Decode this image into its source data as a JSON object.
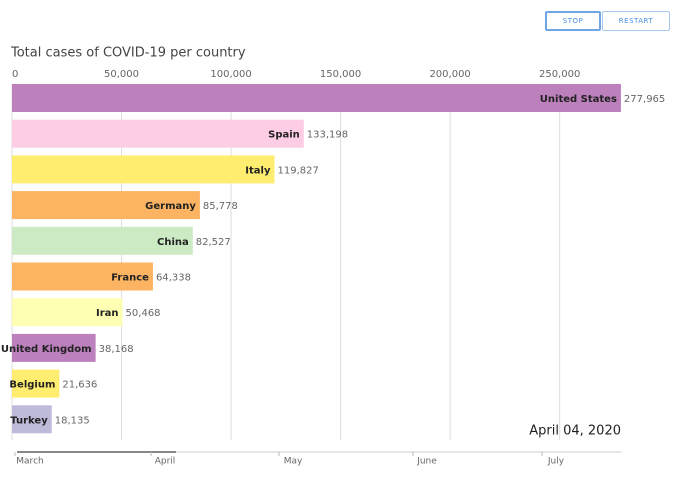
{
  "controls": {
    "stop": "STOP",
    "restart": "RESTART"
  },
  "chart_data": {
    "type": "bar",
    "orientation": "horizontal",
    "title": "Total cases of COVID-19 per country",
    "annotation": "April 04, 2020",
    "categories": [
      "United States",
      "Spain",
      "Italy",
      "Germany",
      "China",
      "France",
      "Iran",
      "United Kingdom",
      "Belgium",
      "Turkey"
    ],
    "values": [
      277965,
      133198,
      119827,
      85778,
      82527,
      64338,
      50468,
      38168,
      21636,
      18135
    ],
    "value_labels": [
      "277,965",
      "133,198",
      "119,827",
      "85,778",
      "82,527",
      "64,338",
      "50,468",
      "38,168",
      "21,636",
      "18,135"
    ],
    "colors": [
      "#bc80bd",
      "#fccde5",
      "#ffed6f",
      "#fdb462",
      "#ccebc5",
      "#fdb462",
      "#ffffb3",
      "#bc80bd",
      "#ffed6f",
      "#bebada"
    ],
    "xlim": [
      0,
      278000
    ],
    "xticks": [
      0,
      {
        "value": 50000,
        "label": "50,000"
      },
      {
        "value": 100000,
        "label": "100,000"
      },
      {
        "value": 150000,
        "label": "150,000"
      },
      {
        "value": 200000,
        "label": "200,000"
      },
      {
        "value": 250000,
        "label": "250,000"
      }
    ],
    "grid": true,
    "timeline_labels": [
      "March",
      "April",
      "May",
      "June",
      "July"
    ]
  }
}
